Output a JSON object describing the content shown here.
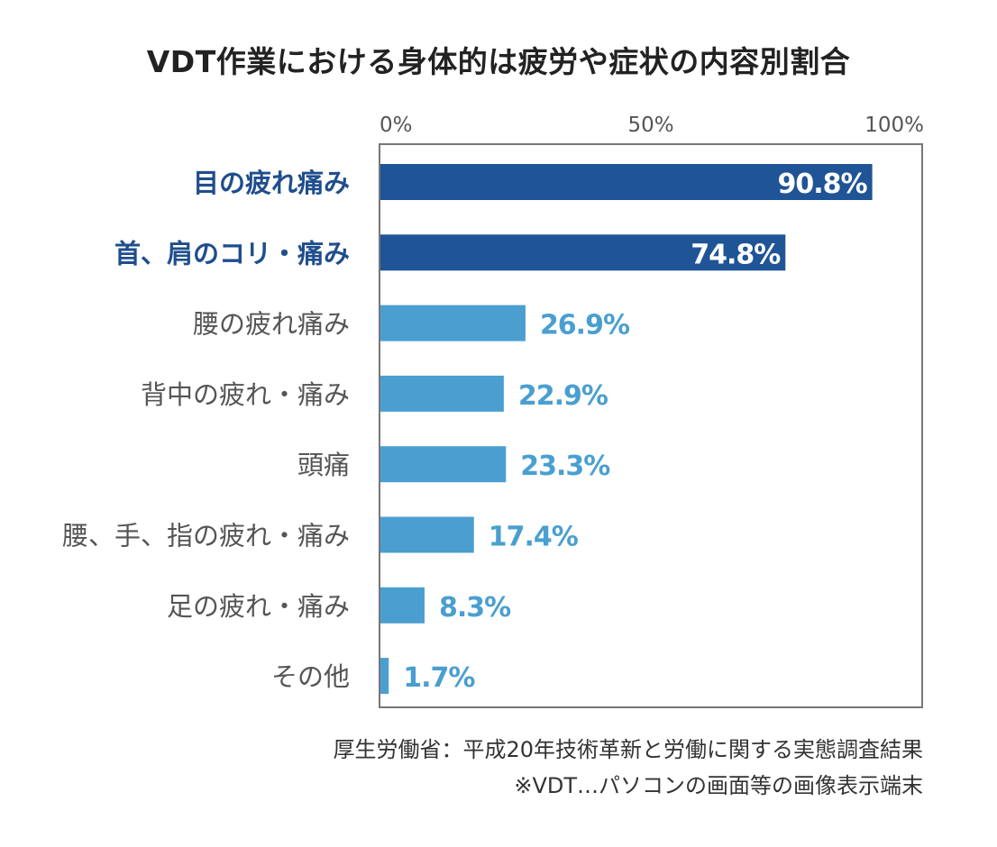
{
  "chart_data": {
    "type": "bar",
    "orientation": "horizontal",
    "title": "VDT作業における身体的は疲労や症状の内容別割合",
    "categories": [
      "目の疲れ痛み",
      "首、肩のコリ・痛み",
      "腰の疲れ痛み",
      "背中の疲れ・痛み",
      "頭痛",
      "腰、手、指の疲れ・痛み",
      "足の疲れ・痛み",
      "その他"
    ],
    "values": [
      90.8,
      74.8,
      26.9,
      22.9,
      23.3,
      17.4,
      8.3,
      1.7
    ],
    "value_labels": [
      "90.8%",
      "74.8%",
      "26.9%",
      "22.9%",
      "23.3%",
      "17.4%",
      "8.3%",
      "1.7%"
    ],
    "highlighted": [
      true,
      true,
      false,
      false,
      false,
      false,
      false,
      false
    ],
    "xlim": [
      0,
      100
    ],
    "x_ticks": [
      0,
      50,
      100
    ],
    "x_tick_labels": [
      "0%",
      "50%",
      "100%"
    ],
    "xlabel": "",
    "ylabel": "",
    "x_axis_position": "top",
    "grid": false,
    "colors": {
      "highlight_bar": "#1f5496",
      "normal_bar": "#4a9fd0",
      "highlight_label": "#1f4e8c",
      "normal_label": "#555555",
      "value_label_outside": "#4a9fd0",
      "value_label_inside": "#ffffff",
      "frame": "#777777",
      "tick_label": "#555555"
    }
  },
  "footer": {
    "source": "厚生労働省：平成20年技術革新と労働に関する実態調査結果",
    "note": "※VDT…パソコンの画面等の画像表示端末"
  }
}
